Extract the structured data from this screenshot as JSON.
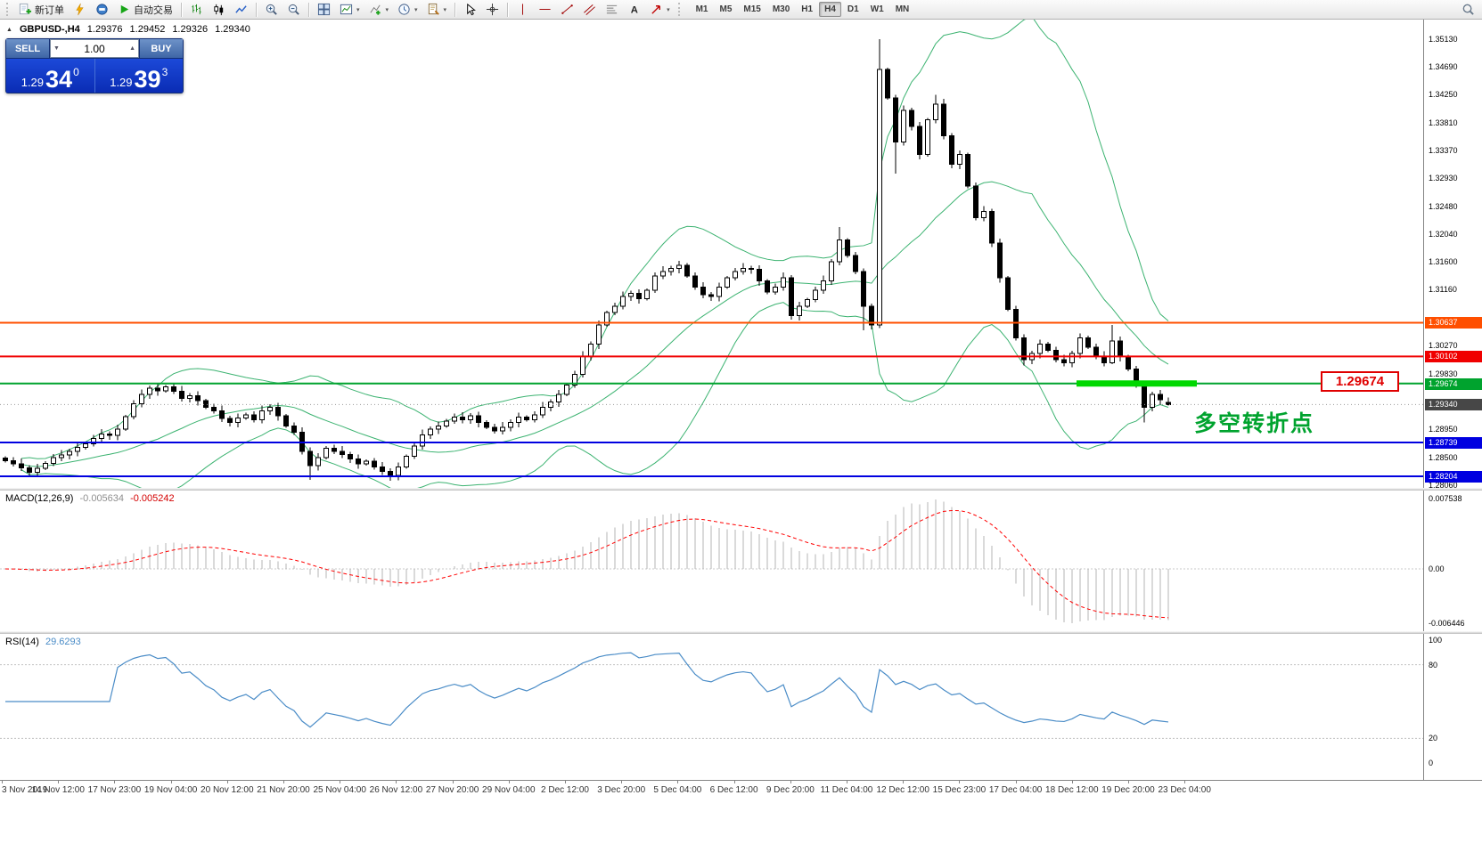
{
  "toolbar": {
    "new_order": "新订单",
    "autotrading": "自动交易",
    "timeframes": [
      "M1",
      "M5",
      "M15",
      "M30",
      "H1",
      "H4",
      "D1",
      "W1",
      "MN"
    ],
    "active_timeframe": "H4"
  },
  "symbol_header": {
    "symbol": "GBPUSD-,H4",
    "open": "1.29376",
    "high": "1.29452",
    "low": "1.29326",
    "close": "1.29340"
  },
  "trade_panel": {
    "sell_label": "SELL",
    "buy_label": "BUY",
    "volume": "1.00",
    "sell_price": {
      "prefix": "1.29",
      "big": "34",
      "sup": "0"
    },
    "buy_price": {
      "prefix": "1.29",
      "big": "39",
      "sup": "3"
    }
  },
  "annotations": {
    "turning_point_text": "多空转折点",
    "price_callout": "1.29674"
  },
  "chart_data": {
    "type": "candlestick",
    "symbol": "GBPUSD",
    "timeframe": "H4",
    "ylim": [
      1.2802,
      1.3544
    ],
    "price_axis_ticks": [
      "1.35130",
      "1.34690",
      "1.34250",
      "1.33810",
      "1.33370",
      "1.32930",
      "1.32480",
      "1.32040",
      "1.31600",
      "1.31160",
      "1.30270",
      "1.29830",
      "1.28950",
      "1.28500",
      "1.28060"
    ],
    "price_tags": [
      {
        "label": "1.30637",
        "price": 1.30637,
        "color": "#ff4f00"
      },
      {
        "label": "1.30102",
        "price": 1.30102,
        "color": "#f00000"
      },
      {
        "label": "1.29674",
        "price": 1.29674,
        "color": "#00a32e"
      },
      {
        "label": "1.29340",
        "price": 1.2934,
        "color": "#474747"
      },
      {
        "label": "1.28739",
        "price": 1.28739,
        "color": "#0000e0"
      },
      {
        "label": "1.28204",
        "price": 1.28204,
        "color": "#0000e0"
      }
    ],
    "hlines": [
      {
        "price": 1.30637,
        "color": "#ff4f00"
      },
      {
        "price": 1.30102,
        "color": "#f00000"
      },
      {
        "price": 1.29674,
        "color": "#00a32e"
      },
      {
        "price": 1.28739,
        "color": "#0000e0"
      },
      {
        "price": 1.28204,
        "color": "#0000e0"
      }
    ],
    "bid_price": 1.2934,
    "highlight_bar": {
      "price": 1.29674,
      "from_candle": 134,
      "to_candle": 145,
      "color": "#00d800"
    },
    "bollinger": {
      "period": 20,
      "deviation": 2,
      "color": "#3cb371"
    },
    "closes": [
      1.2845,
      1.284,
      1.2834,
      1.2827,
      1.2833,
      1.2841,
      1.285,
      1.2854,
      1.286,
      1.2866,
      1.2872,
      1.288,
      1.2887,
      1.2885,
      1.2895,
      1.2915,
      1.2935,
      1.295,
      1.296,
      1.2956,
      1.2962,
      1.2955,
      1.2944,
      1.2948,
      1.294,
      1.293,
      1.2924,
      1.2912,
      1.2906,
      1.2913,
      1.2918,
      1.291,
      1.2924,
      1.293,
      1.2916,
      1.29,
      1.289,
      1.286,
      1.2837,
      1.285,
      1.2865,
      1.286,
      1.2855,
      1.2848,
      1.284,
      1.2844,
      1.2835,
      1.2828,
      1.2822,
      1.2835,
      1.2852,
      1.2868,
      1.2886,
      1.2895,
      1.29,
      1.2908,
      1.2914,
      1.291,
      1.2916,
      1.2906,
      1.2898,
      1.2892,
      1.2898,
      1.2906,
      1.2914,
      1.291,
      1.2918,
      1.293,
      1.2938,
      1.295,
      1.2965,
      1.2982,
      1.301,
      1.303,
      1.306,
      1.308,
      1.309,
      1.3105,
      1.311,
      1.3102,
      1.3115,
      1.3138,
      1.3145,
      1.315,
      1.3155,
      1.3138,
      1.312,
      1.3108,
      1.3105,
      1.312,
      1.3135,
      1.3145,
      1.315,
      1.3148,
      1.313,
      1.3112,
      1.312,
      1.3135,
      1.3075,
      1.309,
      1.31,
      1.3115,
      1.313,
      1.316,
      1.3195,
      1.317,
      1.3145,
      1.309,
      1.306,
      1.3465,
      1.342,
      1.335,
      1.34,
      1.3375,
      1.333,
      1.3385,
      1.341,
      1.336,
      1.3315,
      1.333,
      1.328,
      1.323,
      1.324,
      1.319,
      1.3135,
      1.3085,
      1.304,
      1.3005,
      1.3015,
      1.303,
      1.302,
      1.3005,
      1.3,
      1.3015,
      1.304,
      1.3025,
      1.301,
      1.3,
      1.3035,
      1.301,
      1.299,
      1.2965,
      1.293,
      1.295,
      1.2942,
      1.2934
    ],
    "ohlc_overrides": {
      "38": [
        1.286,
        1.2866,
        1.2815,
        1.2837
      ],
      "48": [
        1.2828,
        1.2833,
        1.2813,
        1.2822
      ],
      "104": [
        1.316,
        1.3215,
        1.3155,
        1.3195
      ],
      "107": [
        1.3145,
        1.315,
        1.3052,
        1.309
      ],
      "109": [
        1.306,
        1.3513,
        1.3055,
        1.3465
      ],
      "111": [
        1.342,
        1.3425,
        1.33,
        1.335
      ],
      "116": [
        1.3385,
        1.3425,
        1.338,
        1.341
      ],
      "127": [
        1.304,
        1.3045,
        1.2996,
        1.3005
      ],
      "138": [
        1.3,
        1.306,
        1.2998,
        1.3035
      ],
      "142": [
        1.2965,
        1.297,
        1.2906,
        1.293
      ],
      "145": [
        1.29376,
        1.29452,
        1.29326,
        1.2934
      ]
    },
    "macd": {
      "label": "MACD(12,26,9)",
      "value": "-0.005634",
      "signal": "-0.005242",
      "axis": [
        "0.007538",
        "0.00",
        "-0.006446"
      ],
      "histogram_color": "#b4b4b4",
      "signal_color": "#ff0000"
    },
    "rsi": {
      "label": "RSI(14)",
      "value": "29.6293",
      "axis": [
        "100",
        "80",
        "20",
        "0"
      ],
      "levels": [
        80,
        20
      ],
      "color": "#4a8cc7"
    },
    "time_labels": [
      "3 Nov 2019",
      "14 Nov 12:00",
      "17 Nov 23:00",
      "19 Nov 04:00",
      "20 Nov 12:00",
      "21 Nov 20:00",
      "25 Nov 04:00",
      "26 Nov 12:00",
      "27 Nov 20:00",
      "29 Nov 04:00",
      "2 Dec 12:00",
      "3 Dec 20:00",
      "5 Dec 04:00",
      "6 Dec 12:00",
      "9 Dec 20:00",
      "11 Dec 04:00",
      "12 Dec 12:00",
      "15 Dec 23:00",
      "17 Dec 04:00",
      "18 Dec 12:00",
      "19 Dec 20:00",
      "23 Dec 04:00"
    ]
  }
}
